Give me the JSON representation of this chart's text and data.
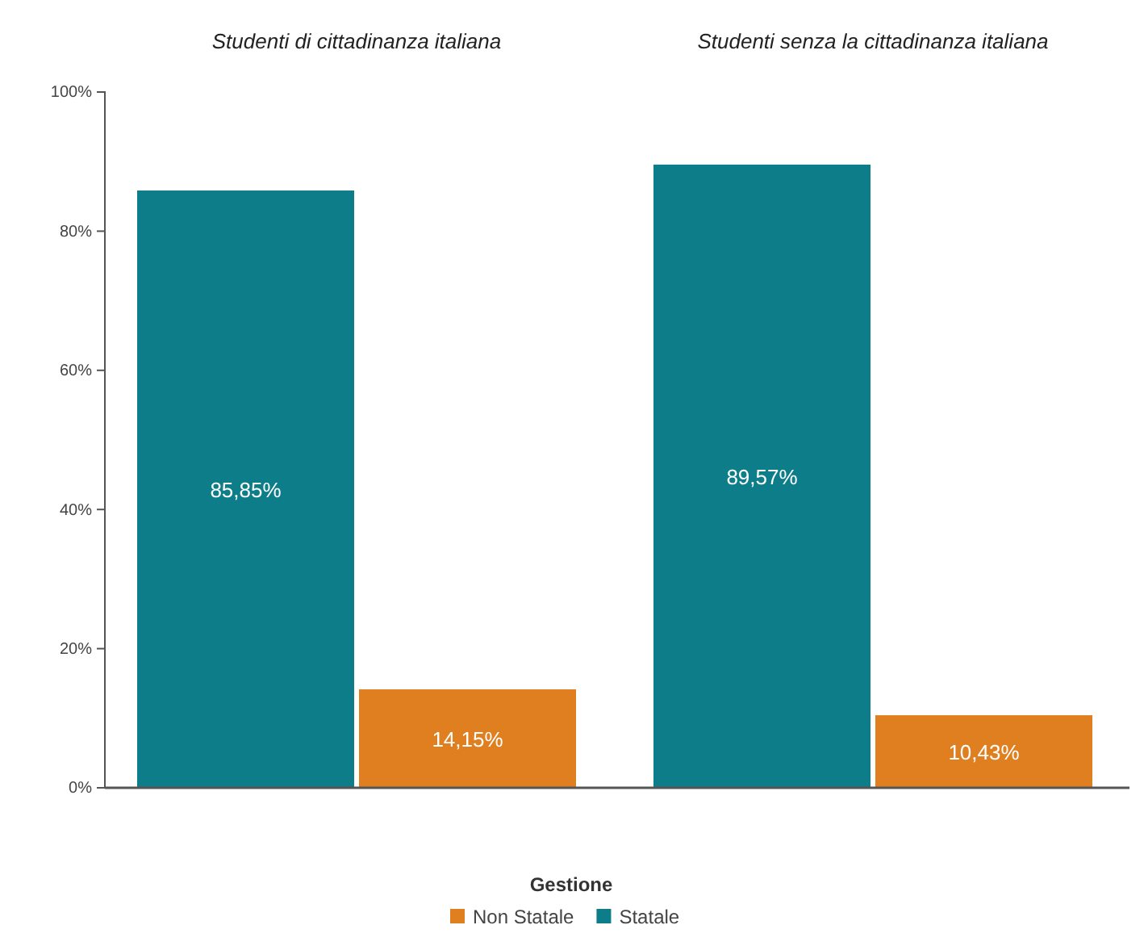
{
  "chart_data": {
    "type": "bar",
    "annotations": [
      "Studenti di cittadinanza italiana",
      "Studenti senza la cittadinanza italiana"
    ],
    "categories": [
      null,
      null,
      null,
      null
    ],
    "series": [
      {
        "name": "Statale",
        "color": "#0e7d8a",
        "values": [
          85.85,
          null,
          89.57,
          null
        ],
        "value_labels": [
          "85,85%",
          null,
          "89,57%",
          null
        ]
      },
      {
        "name": "Non Statale",
        "color": "#e07f1f",
        "values": [
          null,
          14.15,
          null,
          10.43
        ],
        "value_labels": [
          null,
          "14,15%",
          null,
          "10,43%"
        ]
      }
    ],
    "ylim": [
      0,
      100
    ],
    "yticks": [
      {
        "value": 0,
        "label": "0%"
      },
      {
        "value": 20,
        "label": "20%"
      },
      {
        "value": 40,
        "label": "40%"
      },
      {
        "value": 60,
        "label": "60%"
      },
      {
        "value": 80,
        "label": "80%"
      },
      {
        "value": 100,
        "label": "100%"
      }
    ],
    "grid": false,
    "legend": "bottom",
    "legend_title": "Gestione"
  }
}
